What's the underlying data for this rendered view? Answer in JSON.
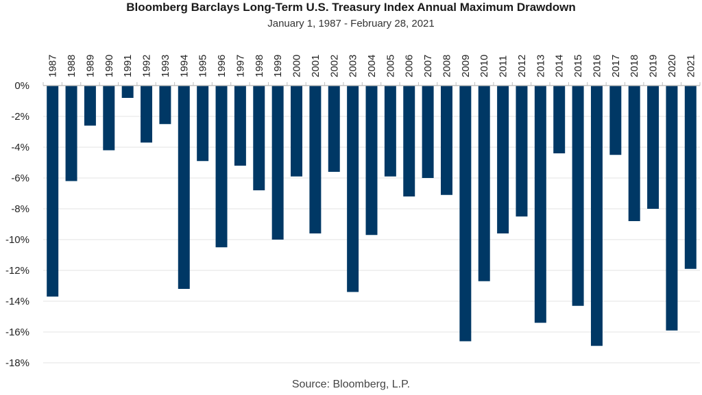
{
  "chart_data": {
    "type": "bar",
    "title": "Bloomberg Barclays Long-Term U.S. Treasury Index Annual Maximum Drawdown",
    "subtitle": "January 1, 1987 - February 28, 2021",
    "source": "Source: Bloomberg, L.P.",
    "xlabel": "",
    "ylabel": "",
    "x_axis_position": "top",
    "ylim": [
      -18,
      0
    ],
    "yticks": [
      0,
      -2,
      -4,
      -6,
      -8,
      -10,
      -12,
      -14,
      -16,
      -18
    ],
    "ytick_labels": [
      "0%",
      "-2%",
      "-4%",
      "-6%",
      "-8%",
      "-10%",
      "-12%",
      "-14%",
      "-16%",
      "-18%"
    ],
    "grid": true,
    "bar_color": "#003865",
    "grid_color": "#e3e3e3",
    "categories": [
      "1987",
      "1988",
      "1989",
      "1990",
      "1991",
      "1992",
      "1993",
      "1994",
      "1995",
      "1996",
      "1997",
      "1998",
      "1999",
      "2000",
      "2001",
      "2002",
      "2003",
      "2004",
      "2005",
      "2006",
      "2007",
      "2008",
      "2009",
      "2010",
      "2011",
      "2012",
      "2013",
      "2014",
      "2015",
      "2016",
      "2017",
      "2018",
      "2019",
      "2020",
      "2021"
    ],
    "values": [
      -13.7,
      -6.2,
      -2.6,
      -4.2,
      -0.8,
      -3.7,
      -2.5,
      -13.2,
      -4.9,
      -10.5,
      -5.2,
      -6.8,
      -10.0,
      -5.9,
      -9.6,
      -5.6,
      -13.4,
      -9.7,
      -5.9,
      -7.2,
      -6.0,
      -7.1,
      -16.6,
      -12.7,
      -9.6,
      -8.5,
      -15.4,
      -4.4,
      -14.3,
      -16.9,
      -4.5,
      -8.8,
      -8.0,
      -15.9,
      -11.9
    ]
  }
}
